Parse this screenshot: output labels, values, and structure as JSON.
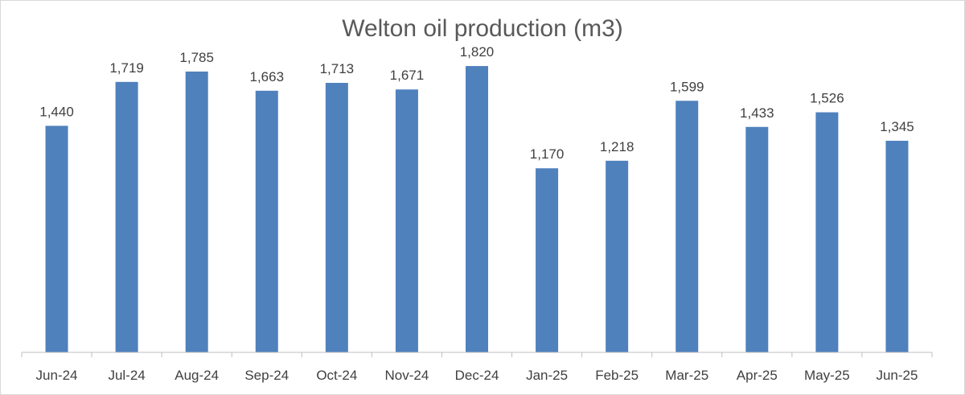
{
  "chart_data": {
    "type": "bar",
    "title": "Welton oil production (m3)",
    "xlabel": "",
    "ylabel": "",
    "categories": [
      "Jun-24",
      "Jul-24",
      "Aug-24",
      "Sep-24",
      "Oct-24",
      "Nov-24",
      "Dec-24",
      "Jan-25",
      "Feb-25",
      "Mar-25",
      "Apr-25",
      "May-25",
      "Jun-25"
    ],
    "values": [
      1440,
      1719,
      1785,
      1663,
      1713,
      1671,
      1820,
      1170,
      1218,
      1599,
      1433,
      1526,
      1345
    ],
    "value_labels": [
      "1,440",
      "1,719",
      "1,785",
      "1,663",
      "1,713",
      "1,671",
      "1,820",
      "1,170",
      "1,218",
      "1,599",
      "1,433",
      "1,526",
      "1,345"
    ],
    "ylim": [
      0,
      2000
    ],
    "grid": false,
    "legend": "none",
    "bar_color": "#4f81bd",
    "axis_color": "#bfbfbf"
  }
}
